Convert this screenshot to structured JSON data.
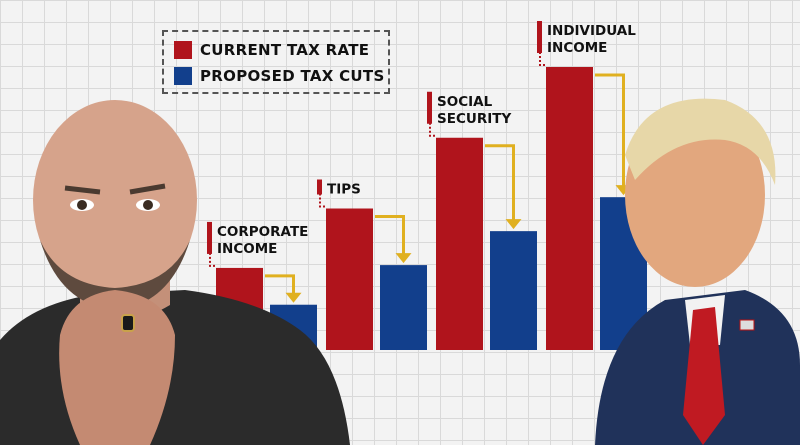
{
  "chart_data": {
    "type": "bar",
    "categories": [
      "CORPORATE INCOME",
      "TIPS",
      "SOCIAL SECURITY",
      "INDIVIDUAL INCOME"
    ],
    "category_labels": [
      [
        "CORPORATE",
        "INCOME"
      ],
      [
        "TIPS"
      ],
      [
        "SOCIAL",
        "SECURITY"
      ],
      [
        "INDIVIDUAL",
        "INCOME"
      ]
    ],
    "series": [
      {
        "name": "CURRENT TAX RATE",
        "color": "#b0141c",
        "values": [
          29,
          50,
          75,
          100
        ]
      },
      {
        "name": "PROPOSED TAX CUTS",
        "color": "#123f8c",
        "values": [
          16,
          30,
          42,
          54
        ]
      }
    ],
    "ylim": [
      0,
      100
    ],
    "grid": true,
    "legend_position": "top-left",
    "arrow_color": "#e0b020",
    "label_marker_color": "#b0141c"
  },
  "people": {
    "left": {
      "icon": "man-portrait-left"
    },
    "right": {
      "icon": "man-portrait-right"
    }
  }
}
